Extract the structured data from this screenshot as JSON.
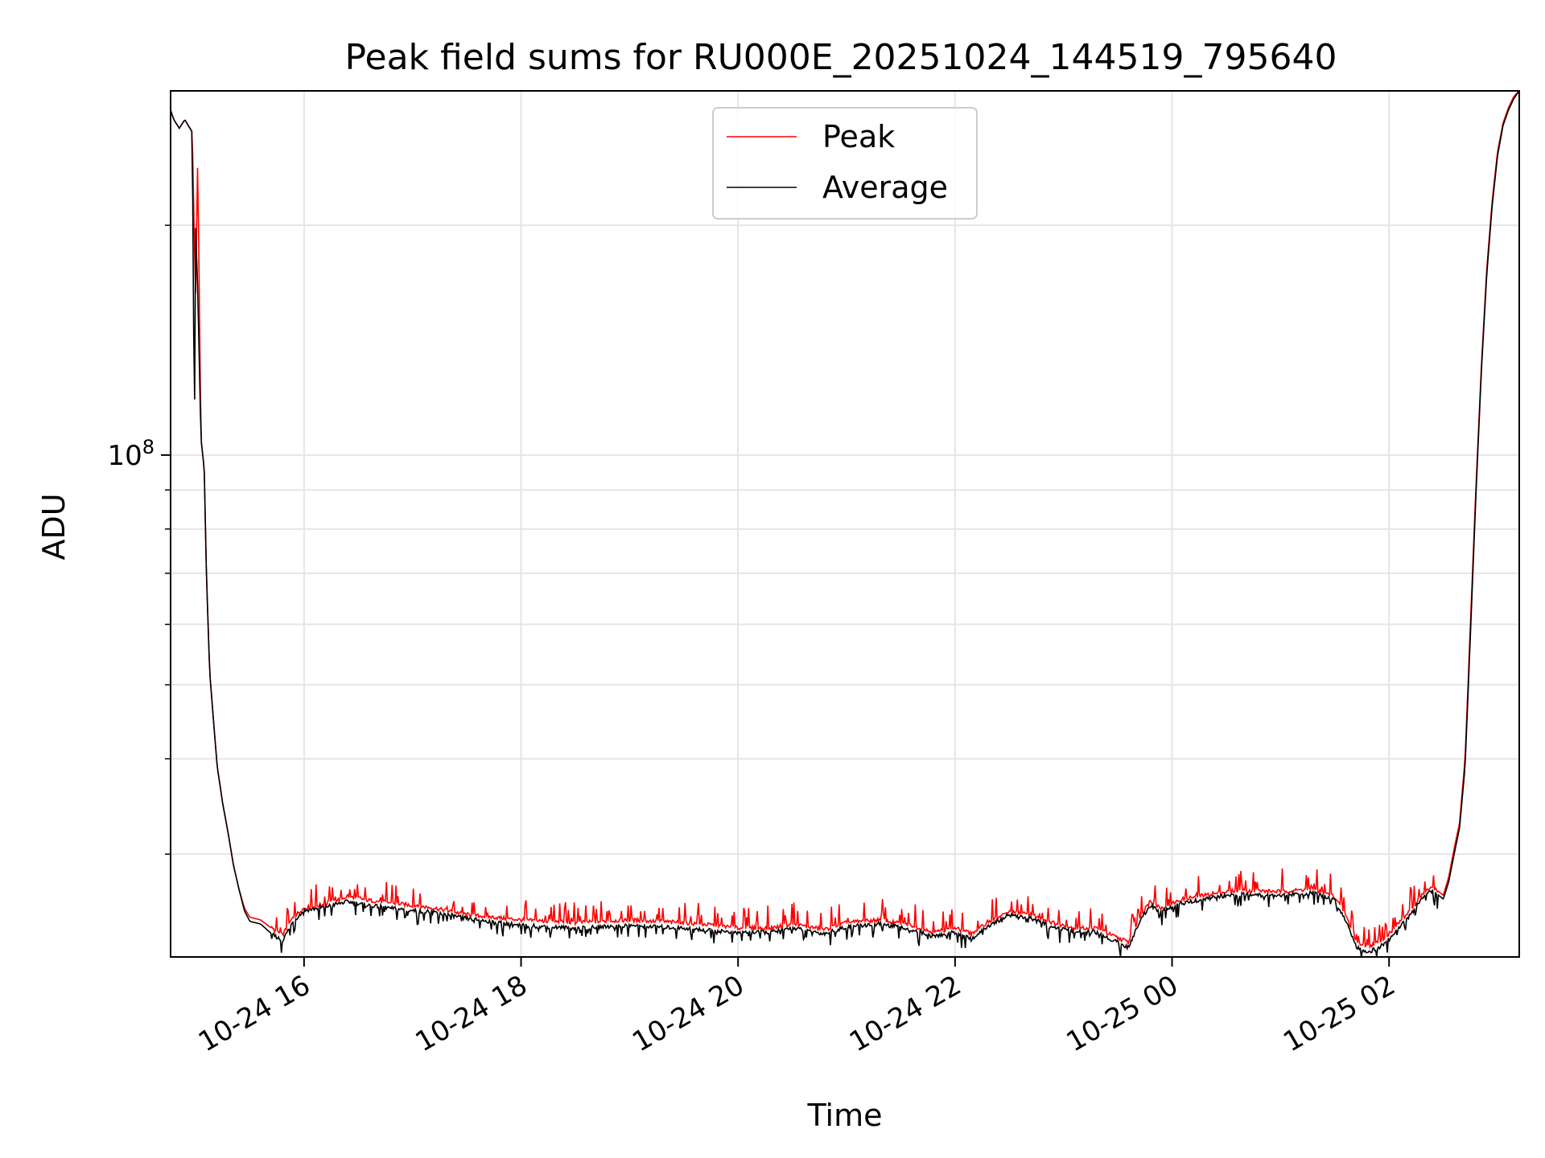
{
  "chart_data": {
    "type": "line",
    "title": "Peak field sums for RU000E_20251024_144519_795640",
    "xlabel": "Time",
    "ylabel": "ADU",
    "y_scale": "log",
    "ylim": [
      22000000,
      300000000
    ],
    "xlim_hours": [
      14.77,
      27.2
    ],
    "grid": true,
    "legend_position": "upper center",
    "x_ticks": [
      {
        "hour": 16,
        "label": "10-24 16"
      },
      {
        "hour": 18,
        "label": "10-24 18"
      },
      {
        "hour": 20,
        "label": "10-24 20"
      },
      {
        "hour": 22,
        "label": "10-24 22"
      },
      {
        "hour": 24,
        "label": "10-25 00"
      },
      {
        "hour": 26,
        "label": "10-25 02"
      }
    ],
    "y_major_ticks": [
      {
        "value": 100000000,
        "base": "10",
        "exp": "8"
      }
    ],
    "y_minor_ticks": [
      30000000,
      40000000,
      50000000,
      60000000,
      70000000,
      80000000,
      90000000,
      200000000
    ],
    "series": [
      {
        "name": "Peak",
        "color": "#ff0000",
        "hours": [
          14.77,
          14.8,
          14.85,
          14.9,
          14.97,
          15.0,
          15.02,
          15.05,
          15.08,
          15.1,
          15.13,
          15.17,
          15.2,
          15.25,
          15.3,
          15.35,
          15.4,
          15.45,
          15.5,
          15.6,
          15.7,
          15.8,
          15.9,
          16.0,
          16.2,
          16.4,
          16.6,
          16.8,
          17.0,
          17.2,
          17.5,
          18.0,
          18.5,
          19.0,
          19.5,
          19.8,
          20.0,
          20.3,
          20.5,
          20.8,
          21.0,
          21.3,
          21.6,
          21.8,
          22.0,
          22.15,
          22.3,
          22.5,
          22.7,
          22.9,
          23.1,
          23.3,
          23.5,
          23.6,
          23.7,
          23.8,
          23.9,
          24.1,
          24.3,
          24.6,
          25.0,
          25.3,
          25.5,
          25.6,
          25.7,
          25.8,
          25.9,
          26.0,
          26.1,
          26.2,
          26.3,
          26.4,
          26.5,
          26.55,
          26.6,
          26.65,
          26.7,
          26.75,
          26.8,
          26.85,
          26.9,
          26.95,
          27.0,
          27.05,
          27.1,
          27.15,
          27.2
        ],
        "values": [
          283000000,
          275000000,
          268000000,
          275000000,
          265000000,
          160000000,
          245000000,
          105000000,
          96000000,
          70000000,
          52000000,
          44000000,
          39000000,
          35000000,
          32000000,
          29000000,
          27000000,
          25500000,
          24800000,
          24600000,
          24000000,
          23500000,
          24800000,
          25500000,
          25800000,
          26400000,
          26100000,
          25900000,
          25700000,
          25500000,
          25000000,
          24600000,
          24400000,
          24600000,
          24400000,
          24200000,
          24000000,
          24000000,
          24300000,
          23900000,
          24400000,
          24600000,
          24200000,
          23700000,
          24000000,
          23600000,
          24400000,
          25200000,
          25000000,
          24400000,
          24000000,
          24000000,
          23300000,
          23000000,
          24800000,
          26000000,
          25500000,
          26200000,
          26500000,
          26900000,
          26800000,
          27000000,
          26400000,
          25000000,
          23000000,
          22700000,
          23000000,
          23600000,
          24500000,
          25300000,
          26500000,
          27200000,
          26500000,
          28000000,
          30500000,
          33000000,
          40000000,
          60000000,
          90000000,
          130000000,
          175000000,
          215000000,
          250000000,
          272000000,
          285000000,
          295000000,
          300000000
        ]
      },
      {
        "name": "Average",
        "color": "#000000",
        "hours": [
          14.77,
          14.8,
          14.85,
          14.9,
          14.97,
          14.99,
          15.0,
          15.02,
          15.05,
          15.08,
          15.1,
          15.13,
          15.17,
          15.2,
          15.25,
          15.3,
          15.35,
          15.4,
          15.45,
          15.5,
          15.6,
          15.7,
          15.8,
          15.9,
          16.0,
          16.2,
          16.4,
          16.6,
          16.8,
          17.0,
          17.2,
          17.5,
          18.0,
          18.5,
          19.0,
          19.5,
          19.8,
          20.0,
          20.3,
          20.5,
          20.8,
          21.0,
          21.3,
          21.6,
          21.8,
          22.0,
          22.15,
          22.3,
          22.5,
          22.7,
          22.9,
          23.1,
          23.3,
          23.5,
          23.6,
          23.7,
          23.8,
          23.9,
          24.1,
          24.3,
          24.6,
          25.0,
          25.3,
          25.5,
          25.6,
          25.7,
          25.8,
          25.9,
          26.0,
          26.1,
          26.2,
          26.3,
          26.4,
          26.5,
          26.55,
          26.6,
          26.65,
          26.7,
          26.75,
          26.8,
          26.85,
          26.9,
          26.95,
          27.0,
          27.05,
          27.1,
          27.15,
          27.2
        ],
        "values": [
          283000000,
          275000000,
          268000000,
          275000000,
          265000000,
          104000000,
          200000000,
          165000000,
          105000000,
          96000000,
          70000000,
          52000000,
          44000000,
          39000000,
          35000000,
          32000000,
          29000000,
          27000000,
          25300000,
          24500000,
          24300000,
          23600000,
          23100000,
          24500000,
          25300000,
          25600000,
          26000000,
          25700000,
          25500000,
          25300000,
          25200000,
          24700000,
          24200000,
          24000000,
          24200000,
          24000000,
          23800000,
          23700000,
          23700000,
          24000000,
          23600000,
          24100000,
          24300000,
          23900000,
          23400000,
          23700000,
          23200000,
          24100000,
          25000000,
          24700000,
          24100000,
          23700000,
          23700000,
          23000000,
          22600000,
          24500000,
          25700000,
          25200000,
          25900000,
          26200000,
          26600000,
          26500000,
          26700000,
          26100000,
          24600000,
          22700000,
          22300000,
          22600000,
          23200000,
          24100000,
          25000000,
          26200000,
          26900000,
          26200000,
          27600000,
          30000000,
          32500000,
          39000000,
          58000000,
          88000000,
          128000000,
          172000000,
          212000000,
          247000000,
          270000000,
          283000000,
          293000000,
          300000000
        ]
      }
    ]
  }
}
